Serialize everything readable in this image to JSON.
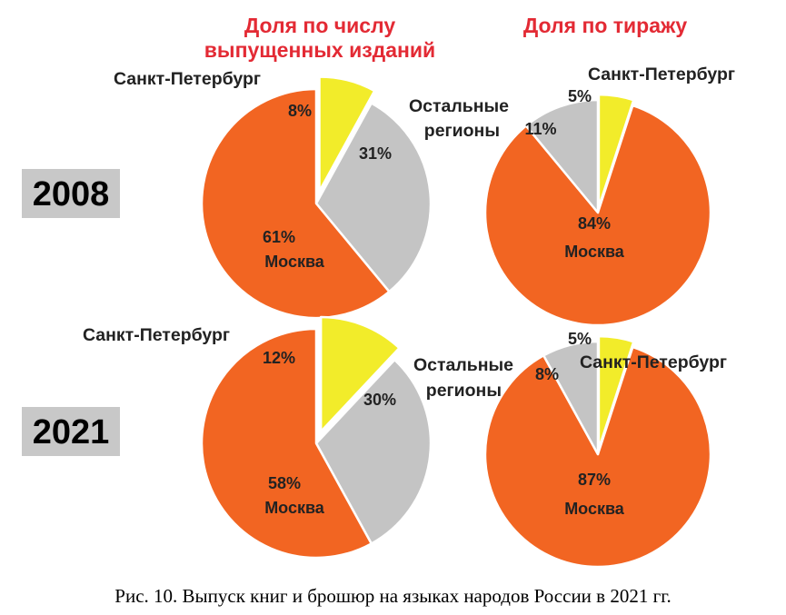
{
  "headers": {
    "left": [
      "Доля по числу",
      "выпущенных изданий"
    ],
    "right": [
      "Доля по тиражу"
    ]
  },
  "years": [
    "2008",
    "2021"
  ],
  "caption": "Рис. 10. Выпуск книг и брошюр на языках народов России в 2021 гг.",
  "colors": {
    "moscow": "#f26522",
    "spb": "#f2ec2a",
    "regions": "#c4c4c4",
    "header": "#e32a34",
    "year_box": "#c8c8c8"
  },
  "chart_data": [
    {
      "type": "pie",
      "title": "Доля по числу выпущенных изданий",
      "year": "2008",
      "slices": [
        {
          "key": "spb",
          "label": "Санкт-Петербург",
          "value": 8,
          "value_label": "8%"
        },
        {
          "key": "regions",
          "label": "",
          "value": 31,
          "value_label": "31%"
        },
        {
          "key": "moscow",
          "label": "Москва",
          "value": 61,
          "value_label": "61%"
        }
      ]
    },
    {
      "type": "pie",
      "title": "Доля по тиражу",
      "year": "2008",
      "slices": [
        {
          "key": "spb",
          "label": "Санкт-Петербург",
          "value": 5,
          "value_label": "5%"
        },
        {
          "key": "moscow",
          "label": "Москва",
          "value": 84,
          "value_label": "84%"
        },
        {
          "key": "regions",
          "label": "Остальные регионы",
          "label_lines": [
            "Остальные",
            "регионы"
          ],
          "value": 11,
          "value_label": "11%"
        }
      ]
    },
    {
      "type": "pie",
      "title": "Доля по числу выпущенных изданий",
      "year": "2021",
      "slices": [
        {
          "key": "spb",
          "label": "Санкт-Петербург",
          "value": 12,
          "value_label": "12%"
        },
        {
          "key": "regions",
          "label": "",
          "value": 30,
          "value_label": "30%"
        },
        {
          "key": "moscow",
          "label": "Москва",
          "value": 58,
          "value_label": "58%"
        }
      ]
    },
    {
      "type": "pie",
      "title": "Доля по тиражу",
      "year": "2021",
      "slices": [
        {
          "key": "spb",
          "label": "Санкт-Петербург",
          "value": 5,
          "value_label": "5%"
        },
        {
          "key": "moscow",
          "label": "Москва",
          "value": 87,
          "value_label": "87%"
        },
        {
          "key": "regions",
          "label": "Остальные регионы",
          "label_lines": [
            "Остальные",
            "регионы"
          ],
          "value": 8,
          "value_label": "8%"
        }
      ]
    }
  ]
}
